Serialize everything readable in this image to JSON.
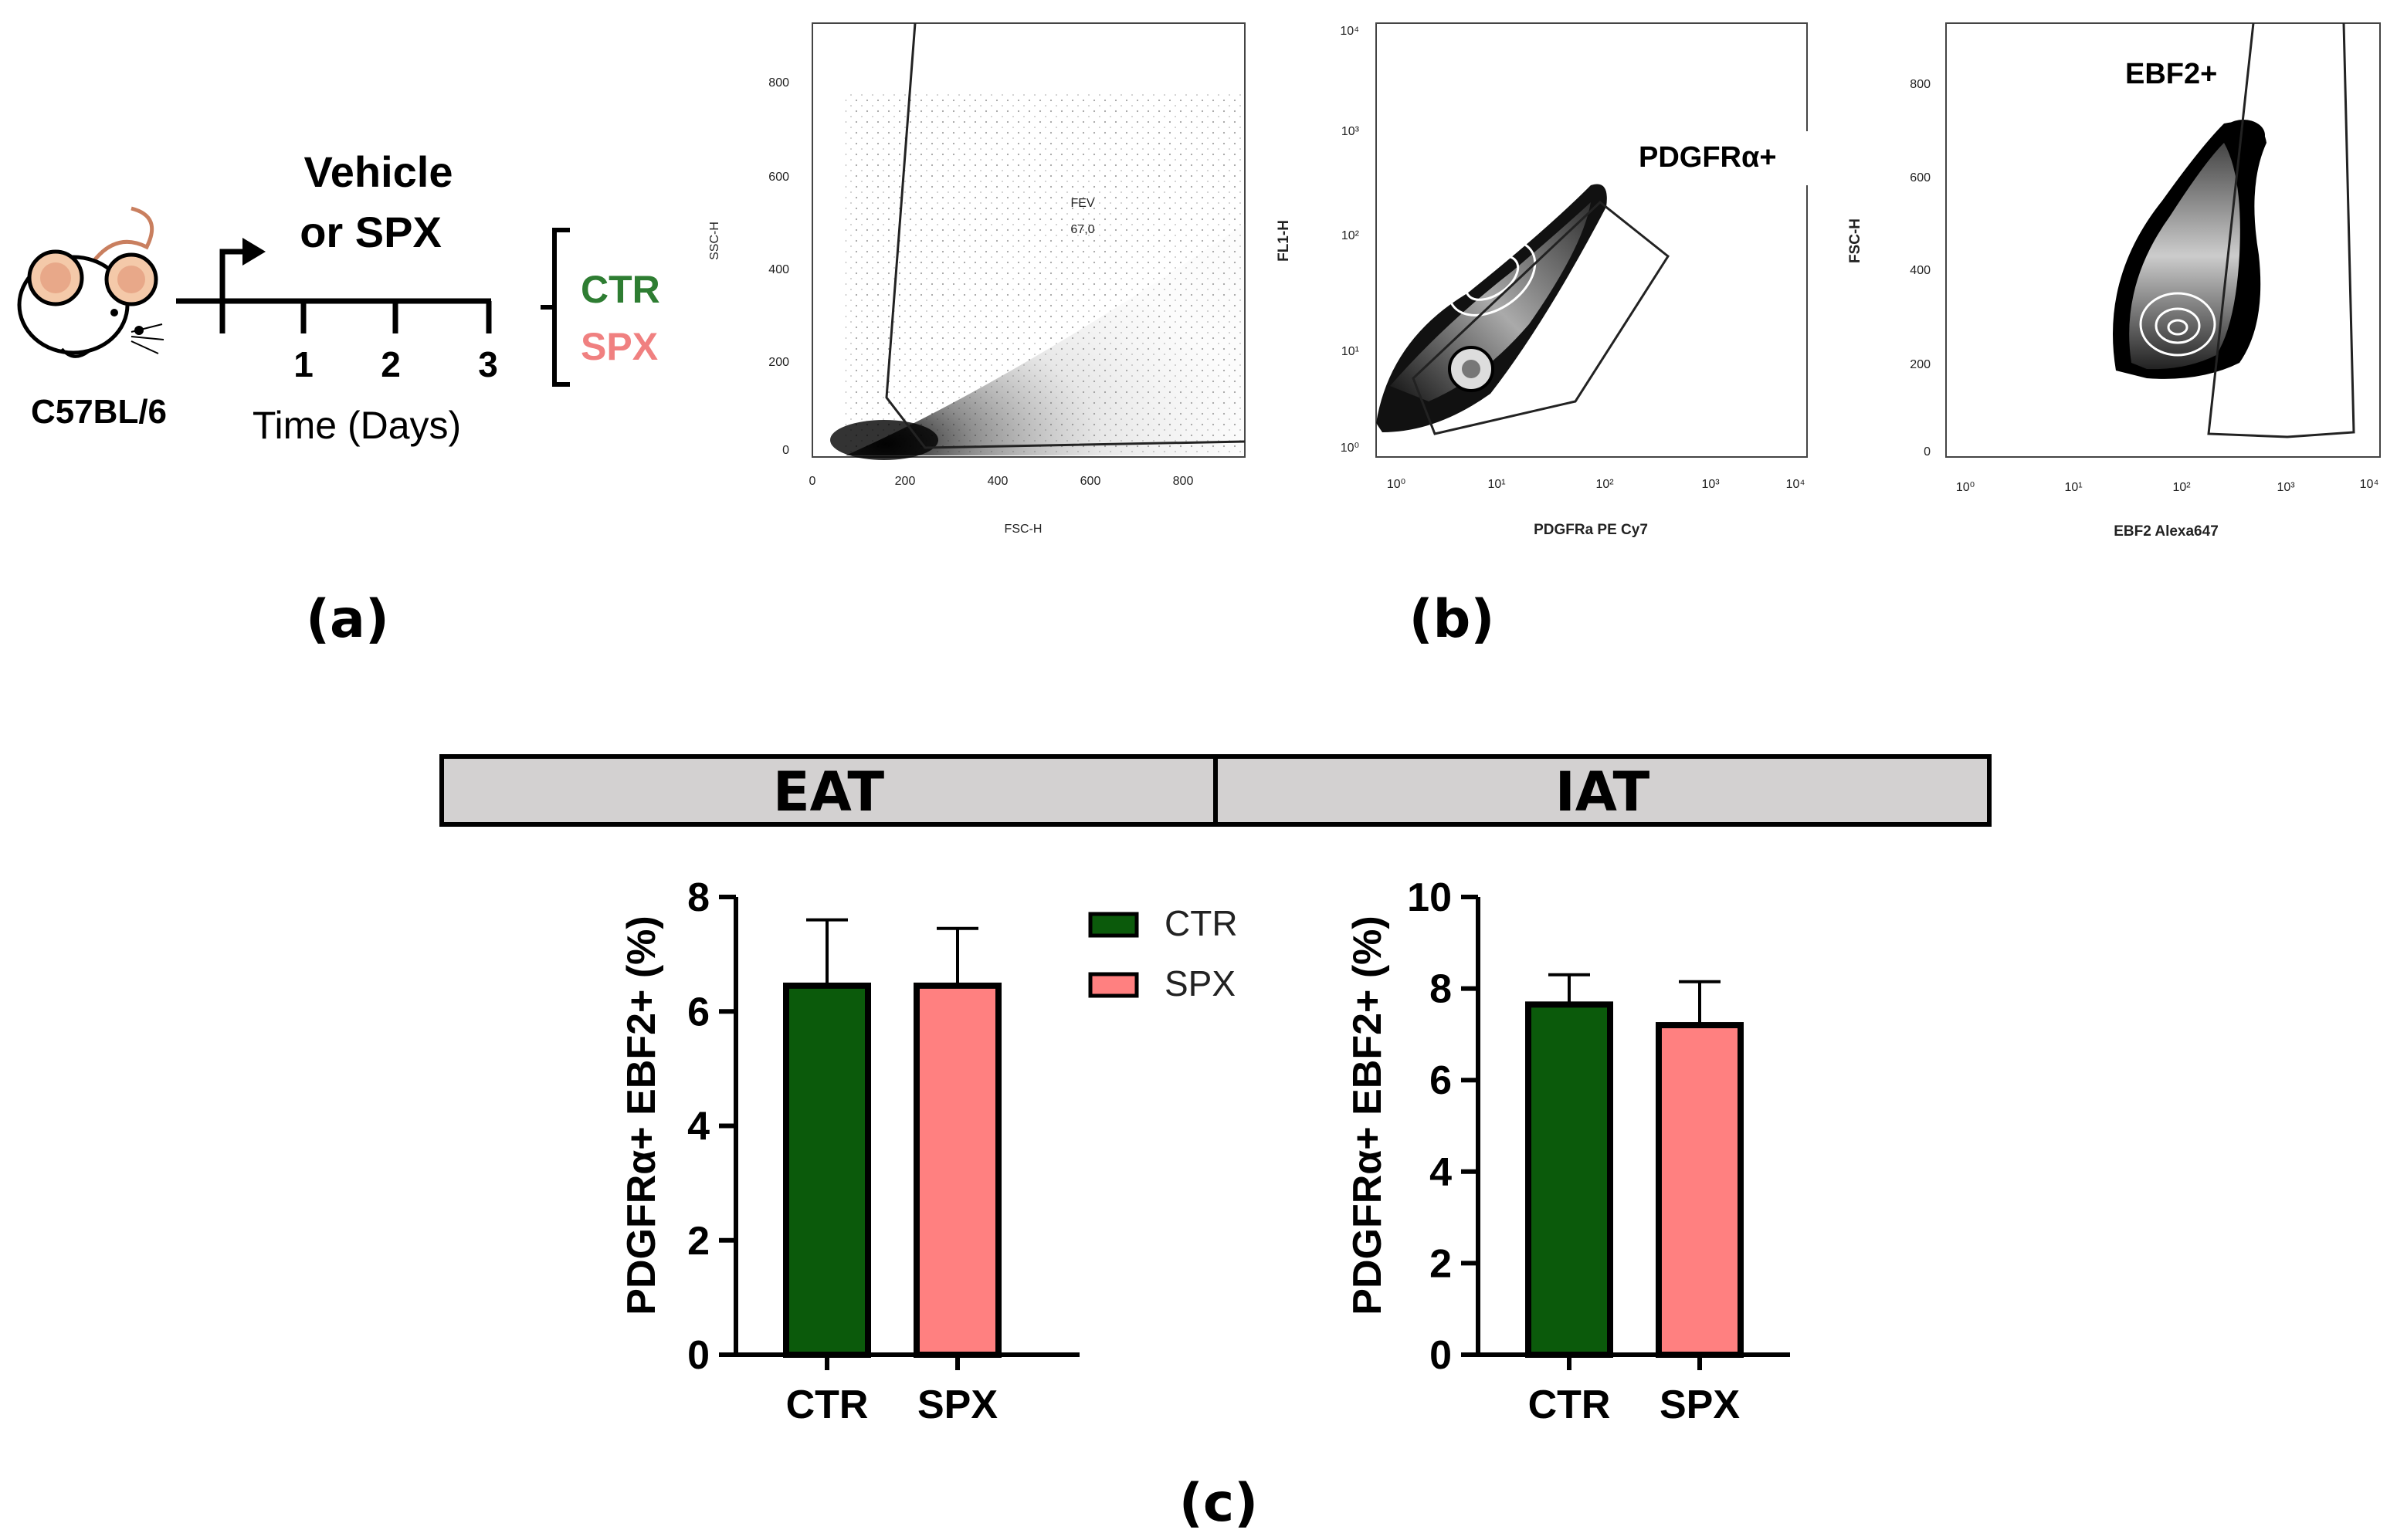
{
  "panel_labels": {
    "a": "(a)",
    "b": "(b)",
    "c": "(c)"
  },
  "schematic": {
    "strain": "C57BL/6",
    "treatment_line1": "Vehicle",
    "treatment_line2": "or SPX",
    "days": [
      "1",
      "2",
      "3"
    ],
    "time_label": "Time (Days)",
    "group_ctr": "CTR",
    "group_spx": "SPX",
    "ctr_color": "#2e7d32",
    "spx_color": "#f08080"
  },
  "flow": {
    "plot1": {
      "xlabel": "FSC-H",
      "ylabel": "SSC-H",
      "xticks": [
        "0",
        "200",
        "400",
        "600",
        "800"
      ],
      "yticks": [
        "0",
        "200",
        "400",
        "600",
        "800"
      ],
      "gate_name": "FEV",
      "gate_value": "67,0"
    },
    "plot2": {
      "xlabel": "PDGFRa PE Cy7",
      "ylabel": "FL1-H",
      "gate_label": "PDGFRα+"
    },
    "plot3": {
      "xlabel": "EBF2 Alexa647",
      "ylabel": "FSC-H",
      "yticks": [
        "0",
        "200",
        "400",
        "600",
        "800"
      ],
      "gate_label": "EBF2+"
    }
  },
  "header": {
    "left": "EAT",
    "right": "IAT",
    "fill": "#d3d1d1"
  },
  "legend": [
    {
      "label": "CTR",
      "color": "#0b5a0b"
    },
    {
      "label": "SPX",
      "color": "#ff8080"
    }
  ],
  "chart_data": [
    {
      "type": "bar",
      "panel": "EAT",
      "categories": [
        "CTR",
        "SPX"
      ],
      "values": [
        6.45,
        6.45
      ],
      "errors": [
        1.15,
        1.0
      ],
      "ylabel": "PDGFRα+ EBF2+ (%)",
      "ylim": [
        0,
        8
      ],
      "yticks": [
        0,
        2,
        4,
        6,
        8
      ],
      "colors": [
        "#0b5a0b",
        "#ff8080"
      ]
    },
    {
      "type": "bar",
      "panel": "IAT",
      "categories": [
        "CTR",
        "SPX"
      ],
      "values": [
        7.65,
        7.2
      ],
      "errors": [
        0.65,
        0.95
      ],
      "ylabel": "PDGFRα+ EBF2+ (%)",
      "ylim": [
        0,
        10
      ],
      "yticks": [
        0,
        2,
        4,
        6,
        8,
        10
      ],
      "colors": [
        "#0b5a0b",
        "#ff8080"
      ]
    }
  ]
}
